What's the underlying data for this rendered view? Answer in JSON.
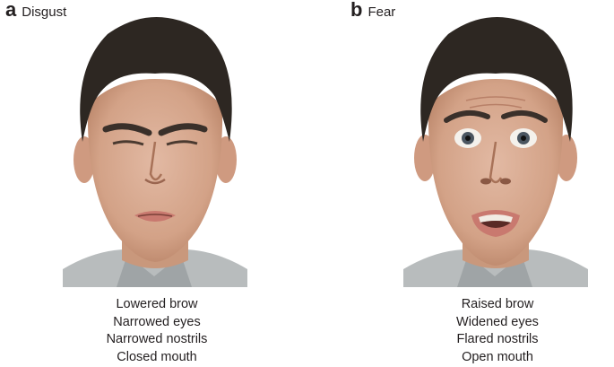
{
  "panels": [
    {
      "letter": "a",
      "emotion": "Disgust",
      "features": [
        "Lowered brow",
        "Narrowed eyes",
        "Narrowed nostrils",
        "Closed mouth"
      ]
    },
    {
      "letter": "b",
      "emotion": "Fear",
      "features": [
        "Raised brow",
        "Widened eyes",
        "Flared nostrils",
        "Open mouth"
      ]
    }
  ],
  "colors": {
    "skin": "#d9ad95",
    "skin_shadow": "#b98468",
    "hair": "#2d2722",
    "shirt": "#b8bcbd",
    "lips": "#c9796f"
  }
}
